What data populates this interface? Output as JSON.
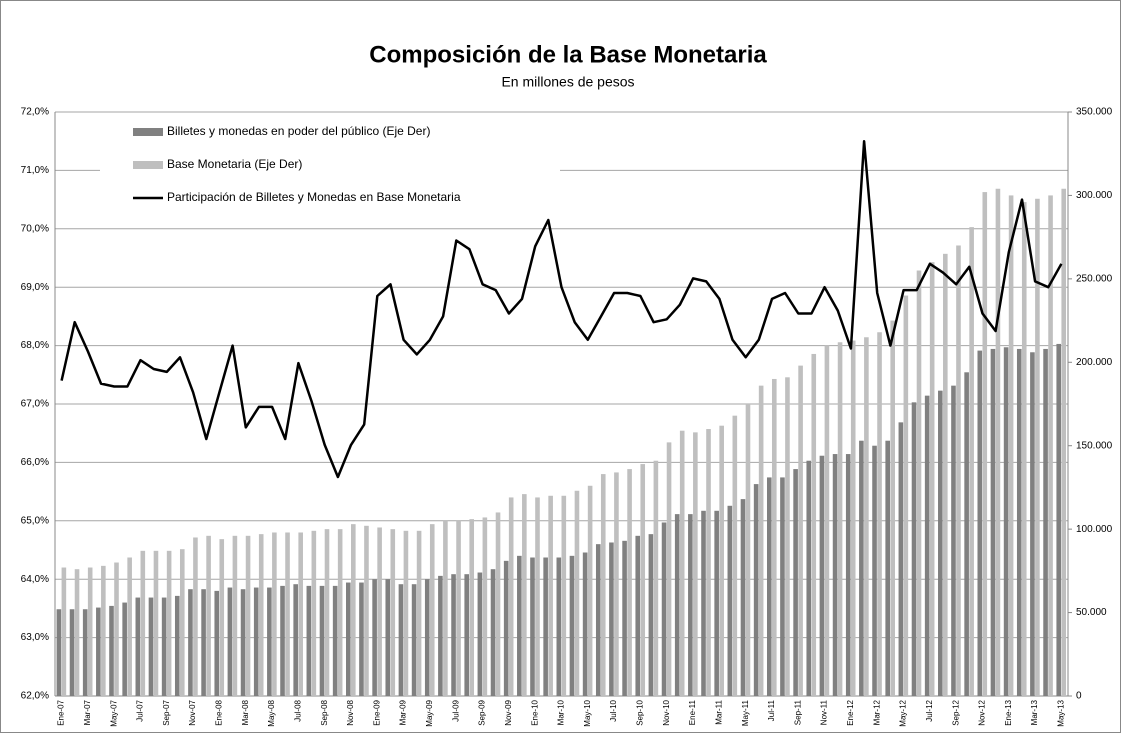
{
  "chart_data": {
    "type": "bar-line",
    "title": "Composición de la Base Monetaria",
    "subtitle": "En millones de pesos",
    "categories": [
      "Ene-07",
      null,
      "Mar-07",
      null,
      "May-07",
      null,
      "Jul-07",
      null,
      "Sep-07",
      null,
      "Nov-07",
      null,
      "Ene-08",
      null,
      "Mar-08",
      null,
      "May-08",
      null,
      "Jul-08",
      null,
      "Sep-08",
      null,
      "Nov-08",
      null,
      "Ene-09",
      null,
      "Mar-09",
      null,
      "May-09",
      null,
      "Jul-09",
      null,
      "Sep-09",
      null,
      "Nov-09",
      null,
      "Ene-10",
      null,
      "Mar-10",
      null,
      "May-10",
      null,
      "Jul-10",
      null,
      "Sep-10",
      null,
      "Nov-10",
      null,
      "Ene-11",
      null,
      "Mar-11",
      null,
      "May-11",
      null,
      "Jul-11",
      null,
      "Sep-11",
      null,
      "Nov-11",
      null,
      "Ene-12",
      null,
      "Mar-12",
      null,
      "May-12",
      null,
      "Jul-12",
      null,
      "Sep-12",
      null,
      "Nov-12",
      null,
      "Ene-13",
      null,
      "Mar-13",
      null,
      "May-13"
    ],
    "series": [
      {
        "name": "Billetes y monedas en poder del público (Eje Der)",
        "color": "#808080",
        "kind": "bar",
        "axis": "y2",
        "values": [
          52000,
          52000,
          52000,
          53000,
          54000,
          56000,
          59000,
          59000,
          59000,
          60000,
          64000,
          64000,
          63000,
          65000,
          64000,
          65000,
          65000,
          66000,
          67000,
          66000,
          66000,
          66000,
          68000,
          68000,
          70000,
          70000,
          67000,
          67000,
          70000,
          72000,
          73000,
          73000,
          74000,
          76000,
          81000,
          84000,
          83000,
          83000,
          83000,
          84000,
          86000,
          91000,
          92000,
          93000,
          96000,
          97000,
          104000,
          109000,
          109000,
          111000,
          111000,
          114000,
          118000,
          127000,
          131000,
          131000,
          136000,
          141000,
          144000,
          145000,
          145000,
          153000,
          150000,
          153000,
          164000,
          176000,
          180000,
          183000,
          186000,
          194000,
          207000,
          208000,
          209000,
          208000,
          206000,
          208000,
          211000
        ]
      },
      {
        "name": "Base Monetaria (Eje Der)",
        "color": "#bfbfbf",
        "kind": "bar",
        "axis": "y2",
        "values": [
          77000,
          76000,
          77000,
          78000,
          80000,
          83000,
          87000,
          87000,
          87000,
          88000,
          95000,
          96000,
          94000,
          96000,
          96000,
          97000,
          98000,
          98000,
          98000,
          99000,
          100000,
          100000,
          103000,
          102000,
          101000,
          100000,
          99000,
          99000,
          103000,
          105000,
          105000,
          106000,
          107000,
          110000,
          119000,
          121000,
          119000,
          120000,
          120000,
          123000,
          126000,
          133000,
          134000,
          136000,
          139000,
          141000,
          152000,
          159000,
          158000,
          160000,
          162000,
          168000,
          175000,
          186000,
          190000,
          191000,
          198000,
          205000,
          210000,
          212000,
          213000,
          215000,
          218000,
          225000,
          240000,
          255000,
          260000,
          265000,
          270000,
          281000,
          302000,
          304000,
          300000,
          296000,
          298000,
          300000,
          304000
        ]
      },
      {
        "name": "Participación de Billetes y Monedas en Base Monetaria",
        "color": "#000000",
        "kind": "line",
        "values": [
          67.4,
          68.4,
          67.9,
          67.35,
          67.3,
          67.3,
          67.75,
          67.6,
          67.55,
          67.8,
          67.2,
          66.4,
          67.2,
          68.0,
          66.6,
          66.95,
          66.95,
          66.4,
          67.7,
          67.05,
          66.3,
          65.75,
          66.3,
          66.65,
          68.85,
          69.05,
          68.1,
          67.85,
          68.1,
          68.5,
          69.8,
          69.65,
          69.05,
          68.95,
          68.55,
          68.8,
          69.7,
          70.15,
          69.0,
          68.4,
          68.1,
          68.5,
          68.9,
          68.9,
          68.85,
          68.4,
          68.45,
          68.7,
          69.15,
          69.1,
          68.8,
          68.1,
          67.8,
          68.1,
          68.8,
          68.9,
          68.55,
          68.55,
          69.0,
          68.6,
          67.95,
          71.5,
          68.9,
          68.0,
          68.95,
          68.95,
          69.4,
          69.25,
          69.05,
          69.35,
          68.55,
          68.25,
          69.6,
          70.5,
          69.1,
          69.0,
          69.4
        ]
      }
    ],
    "ylim": [
      62,
      72
    ],
    "yticks": [
      {
        "value": 62,
        "label": "62,0%"
      },
      {
        "value": 63,
        "label": "63,0%"
      },
      {
        "value": 64,
        "label": "64,0%"
      },
      {
        "value": 65,
        "label": "65,0%"
      },
      {
        "value": 66,
        "label": "66,0%"
      },
      {
        "value": 67,
        "label": "67,0%"
      },
      {
        "value": 68,
        "label": "68,0%"
      },
      {
        "value": 69,
        "label": "69,0%"
      },
      {
        "value": 70,
        "label": "70,0%"
      },
      {
        "value": 71,
        "label": "71,0%"
      },
      {
        "value": 72,
        "label": "72,0%"
      }
    ],
    "y2lim": [
      0,
      350000
    ],
    "y2ticks": [
      0,
      {
        "value": 50000,
        "label": "50.000"
      },
      {
        "value": 100000,
        "label": "100.000"
      },
      {
        "value": 150000,
        "label": "150.000"
      },
      {
        "value": 200000,
        "label": "200.000"
      },
      {
        "value": 250000,
        "label": "250.000"
      },
      {
        "value": 300000,
        "label": "300.000"
      },
      {
        "value": 350000,
        "label": "350.000"
      }
    ],
    "grid": true,
    "legend": "top-left"
  }
}
